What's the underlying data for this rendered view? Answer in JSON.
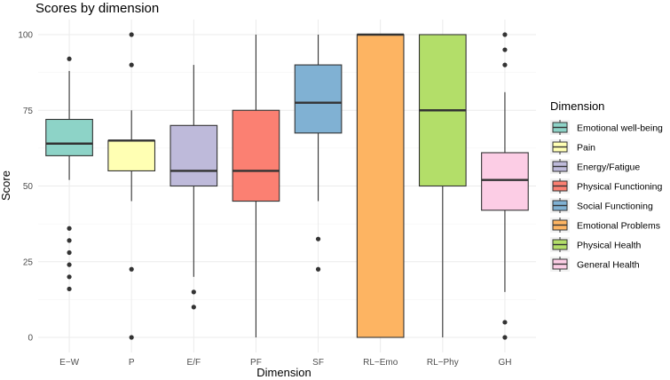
{
  "chart_data": {
    "type": "boxplot",
    "title": "Scores by dimension",
    "xlabel": "Dimension",
    "ylabel": "Score",
    "ylim": [
      -5,
      103
    ],
    "yticks": [
      0,
      25,
      50,
      75,
      100
    ],
    "grid": true,
    "legend": {
      "title": "Dimension",
      "placement": "right",
      "entries": [
        {
          "label": "Emotional well-being",
          "color": "#8DD3C7"
        },
        {
          "label": "Pain",
          "color": "#FFFFB3"
        },
        {
          "label": "Energy/Fatigue",
          "color": "#BEBADA"
        },
        {
          "label": "Physical Functioning",
          "color": "#FB8072"
        },
        {
          "label": "Social Functioning",
          "color": "#80B1D3"
        },
        {
          "label": "Emotional Problems",
          "color": "#FDB462"
        },
        {
          "label": "Physical Health",
          "color": "#B3DE69"
        },
        {
          "label": "General Health",
          "color": "#FCCDE5"
        }
      ]
    },
    "categories": [
      "E−W",
      "P",
      "E/F",
      "PF",
      "SF",
      "RL−Emo",
      "RL−Phy",
      "GH"
    ],
    "boxes": [
      {
        "category": "E−W",
        "color": "#8DD3C7",
        "whisker_low": 52,
        "q1": 60,
        "median": 64,
        "q3": 72,
        "whisker_high": 88,
        "outliers": [
          92,
          36,
          32,
          28,
          24,
          20,
          16
        ]
      },
      {
        "category": "P",
        "color": "#FFFFB3",
        "whisker_low": 45,
        "q1": 55,
        "median": 65,
        "q3": 65,
        "whisker_high": 75,
        "outliers": [
          100,
          90,
          22.5,
          0
        ]
      },
      {
        "category": "E/F",
        "color": "#BEBADA",
        "whisker_low": 20,
        "q1": 50,
        "median": 55,
        "q3": 70,
        "whisker_high": 90,
        "outliers": [
          15,
          10
        ]
      },
      {
        "category": "PF",
        "color": "#FB8072",
        "whisker_low": 0,
        "q1": 45,
        "median": 55,
        "q3": 75,
        "whisker_high": 100,
        "outliers": []
      },
      {
        "category": "SF",
        "color": "#80B1D3",
        "whisker_low": 45,
        "q1": 67.5,
        "median": 77.5,
        "q3": 90,
        "whisker_high": 100,
        "outliers": [
          32.5,
          22.5
        ]
      },
      {
        "category": "RL−Emo",
        "color": "#FDB462",
        "whisker_low": 0,
        "q1": 0,
        "median": 100,
        "q3": 100,
        "whisker_high": 100,
        "outliers": []
      },
      {
        "category": "RL−Phy",
        "color": "#B3DE69",
        "whisker_low": 0,
        "q1": 50,
        "median": 75,
        "q3": 100,
        "whisker_high": 100,
        "outliers": []
      },
      {
        "category": "GH",
        "color": "#FCCDE5",
        "whisker_low": 15,
        "q1": 42,
        "median": 52,
        "q3": 61,
        "whisker_high": 81,
        "outliers": [
          100,
          95,
          90,
          5,
          0
        ]
      }
    ]
  }
}
